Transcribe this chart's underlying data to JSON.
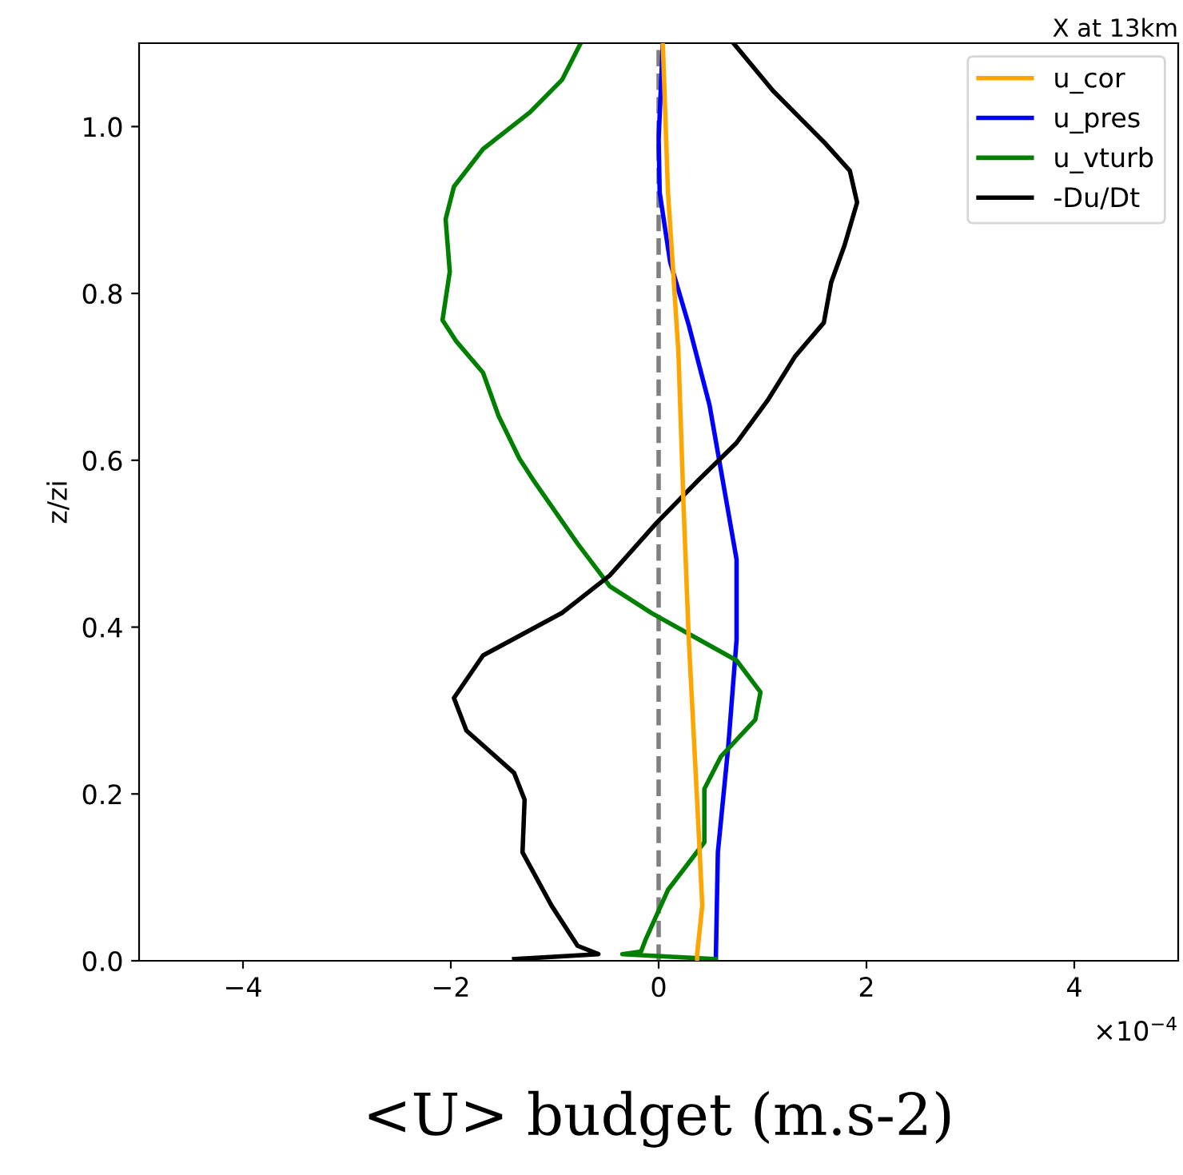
{
  "chart_data": {
    "type": "line",
    "title": "X at 13km",
    "xlabel": "<U> budget (m.s-2)",
    "ylabel": "z/zi",
    "annotations": [
      "×10$^{−4}$"
    ],
    "xlim": [
      -5,
      5
    ],
    "xticks": [
      {
        "value": -4,
        "label": "−4"
      },
      {
        "value": -2,
        "label": "−2"
      },
      0,
      2,
      4
    ],
    "ylim": [
      0,
      1.1
    ],
    "yticks": [
      {
        "value": 0,
        "label": "0.0"
      },
      {
        "value": 0.2,
        "label": "0.2"
      },
      {
        "value": 0.4,
        "label": "0.4"
      },
      {
        "value": 0.6,
        "label": "0.6"
      },
      {
        "value": 0.8,
        "label": "0.8"
      },
      {
        "value": 1.0,
        "label": "1.0"
      }
    ],
    "grid": false,
    "legend": "top right",
    "line_style": "solid",
    "ref_lines": [
      {
        "axis": "x",
        "value": 0,
        "color": "#808080",
        "line_style": "dashed"
      }
    ],
    "series": [
      {
        "name": "u_cor",
        "color": "#ffa500",
        "x": [
          0.04,
          0.09,
          0.19,
          0.24,
          0.29,
          0.37,
          0.42,
          0.37,
          0.37
        ],
        "values": [
          1.1,
          0.921,
          0.73,
          0.545,
          0.385,
          0.193,
          0.066,
          0.008,
          0.0
        ]
      },
      {
        "name": "u_pres",
        "color": "#0000ff",
        "x": [
          0.04,
          0.0,
          0.01,
          0.11,
          0.29,
          0.49,
          0.67,
          0.75,
          0.75,
          0.67,
          0.57,
          0.55
        ],
        "values": [
          1.1,
          0.985,
          0.921,
          0.838,
          0.762,
          0.666,
          0.538,
          0.481,
          0.385,
          0.257,
          0.13,
          0.0
        ]
      },
      {
        "name": "u_vturb",
        "color": "#008000",
        "x": [
          -0.75,
          -0.93,
          -1.24,
          -1.69,
          -1.97,
          -2.05,
          -2.01,
          -2.08,
          -1.95,
          -1.69,
          -1.54,
          -1.34,
          -1.21,
          -0.78,
          -0.47,
          -0.07,
          0.39,
          0.75,
          0.98,
          0.93,
          0.6,
          0.44,
          0.44,
          0.09,
          -0.12,
          -0.17,
          -0.35,
          0.55
        ],
        "values": [
          1.1,
          1.056,
          1.017,
          0.973,
          0.928,
          0.889,
          0.826,
          0.768,
          0.743,
          0.705,
          0.653,
          0.602,
          0.577,
          0.5,
          0.449,
          0.417,
          0.385,
          0.36,
          0.322,
          0.289,
          0.245,
          0.206,
          0.142,
          0.085,
          0.027,
          0.011,
          0.008,
          0.002
        ]
      },
      {
        "name": "-Du/Dt",
        "color": "#000000",
        "x": [
          0.72,
          1.1,
          1.61,
          1.84,
          1.91,
          1.79,
          1.66,
          1.59,
          1.31,
          1.05,
          0.75,
          0.39,
          -0.02,
          -0.47,
          -0.93,
          -1.69,
          -1.97,
          -1.85,
          -1.39,
          -1.29,
          -1.31,
          -1.03,
          -0.78,
          -0.58,
          -1.39
        ],
        "values": [
          1.1,
          1.043,
          0.979,
          0.947,
          0.909,
          0.858,
          0.813,
          0.765,
          0.724,
          0.672,
          0.621,
          0.577,
          0.525,
          0.462,
          0.417,
          0.366,
          0.315,
          0.276,
          0.225,
          0.193,
          0.13,
          0.066,
          0.018,
          0.008,
          0.002
        ]
      }
    ]
  }
}
